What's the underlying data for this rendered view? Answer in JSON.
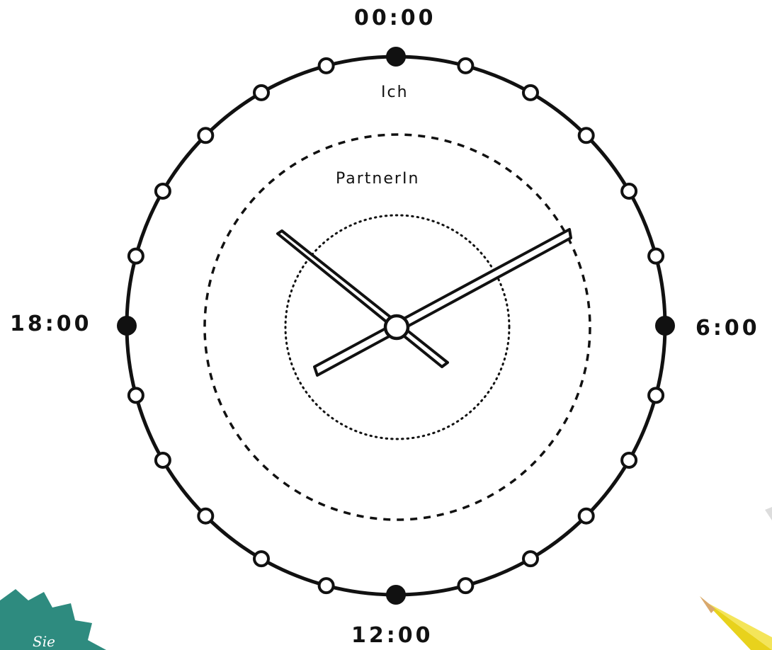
{
  "clock": {
    "time_labels": {
      "top": "00:00",
      "right": "6:00",
      "bottom": "12:00",
      "left": "18:00"
    },
    "ring_labels": {
      "outer": "Ich",
      "middle": "PartnerIn"
    },
    "hour_markers": 24,
    "filled_markers_at_hours": [
      0,
      6,
      12,
      18
    ]
  },
  "badge": {
    "text": "Sie"
  },
  "colors": {
    "ink": "#111111",
    "badge": "#2e8b7f",
    "pencil_body": "#e8d21c",
    "pencil_wood": "#d9a86c"
  }
}
